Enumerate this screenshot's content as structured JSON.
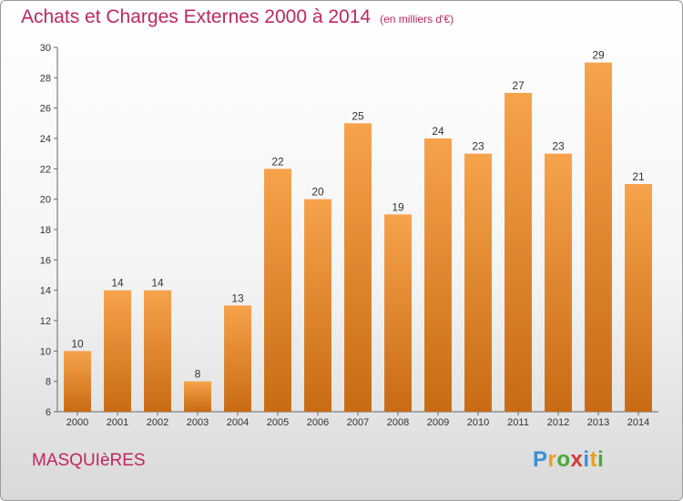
{
  "title": "Achats et Charges Externes 2000 à 2014",
  "unit": "(en milliers d'€)",
  "commune": "MASQUIèRES",
  "logo": {
    "letters": [
      "P",
      "r",
      "o",
      "x",
      "i",
      "t",
      "i"
    ],
    "colors": [
      "#3a8fd6",
      "#e8a020",
      "#4aa83a",
      "#d63a3a",
      "#3a8fd6",
      "#e8a020",
      "#4aa83a"
    ]
  },
  "colors": {
    "bar_top": "#f6a34b",
    "bar_bottom": "#c86b14",
    "title": "#c0265e"
  },
  "chart_data": {
    "type": "bar",
    "title": "Achats et Charges Externes 2000 à 2014",
    "categories": [
      "2000",
      "2001",
      "2002",
      "2003",
      "2004",
      "2005",
      "2006",
      "2007",
      "2008",
      "2009",
      "2010",
      "2011",
      "2012",
      "2013",
      "2014"
    ],
    "values": [
      10,
      14,
      14,
      8,
      13,
      22,
      20,
      25,
      19,
      24,
      23,
      27,
      23,
      29,
      21
    ],
    "ylim": [
      6,
      30
    ],
    "yticks": [
      6,
      8,
      10,
      12,
      14,
      16,
      18,
      20,
      22,
      24,
      26,
      28,
      30
    ],
    "grid": false,
    "xlabel": "",
    "ylabel": ""
  }
}
